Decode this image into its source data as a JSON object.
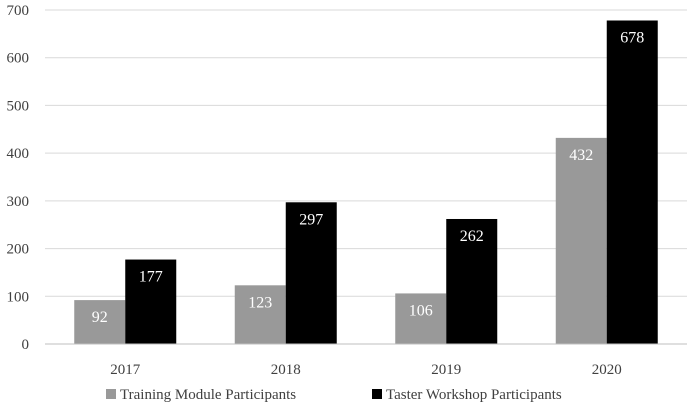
{
  "chart_data": {
    "type": "bar",
    "categories": [
      "2017",
      "2018",
      "2019",
      "2020"
    ],
    "series": [
      {
        "name": "Training Module Participants",
        "values": [
          92,
          123,
          106,
          432
        ],
        "color": "#999999"
      },
      {
        "name": "Taster Workshop Participants",
        "values": [
          177,
          297,
          262,
          678
        ],
        "color": "#000000"
      }
    ],
    "yticks": [
      0,
      100,
      200,
      300,
      400,
      500,
      600,
      700
    ],
    "ylim": [
      0,
      700
    ],
    "grid": true,
    "legend_position": "bottom",
    "data_labels": true
  }
}
